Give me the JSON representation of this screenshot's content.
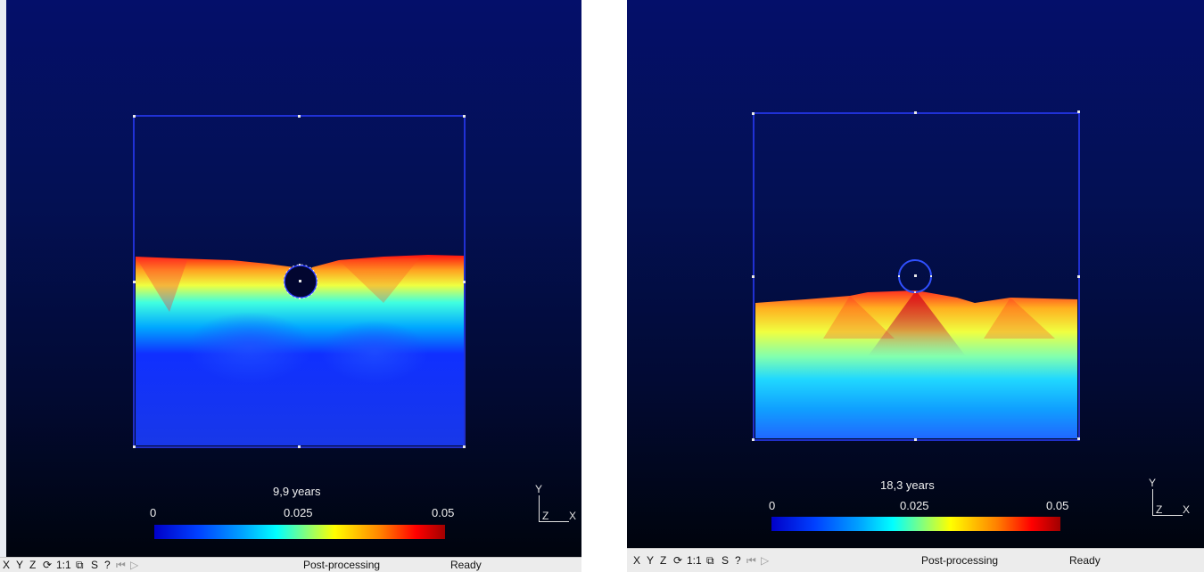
{
  "views": [
    {
      "time_label": "9,9 years",
      "colorbar": {
        "min_label": "0",
        "mid_label": "0.025",
        "max_label": "0.05",
        "min": 0,
        "max": 0.05
      },
      "axes": {
        "y": "Y",
        "z": "Z",
        "x": "X"
      },
      "toolbar": {
        "x": "X",
        "y": "Y",
        "z": "Z",
        "rotate": "⟳",
        "one_to_one": "1:1",
        "box": "⧉",
        "s": "S",
        "help": "?",
        "first": "⏮",
        "play": "▷"
      },
      "mode_label": "Post-processing",
      "status_label": "Ready"
    },
    {
      "time_label": "18,3 years",
      "colorbar": {
        "min_label": "0",
        "mid_label": "0.025",
        "max_label": "0.05",
        "min": 0,
        "max": 0.05
      },
      "axes": {
        "y": "Y",
        "z": "Z",
        "x": "X"
      },
      "toolbar": {
        "x": "X",
        "y": "Y",
        "z": "Z",
        "rotate": "⟳",
        "one_to_one": "1:1",
        "box": "⧉",
        "s": "S",
        "help": "?",
        "first": "⏮",
        "play": "▷"
      },
      "mode_label": "Post-processing",
      "status_label": "Ready"
    }
  ],
  "colors": {
    "boundary": "#2a3cff",
    "viewport_top": "#040f6a",
    "viewport_bottom": "#00040d"
  }
}
